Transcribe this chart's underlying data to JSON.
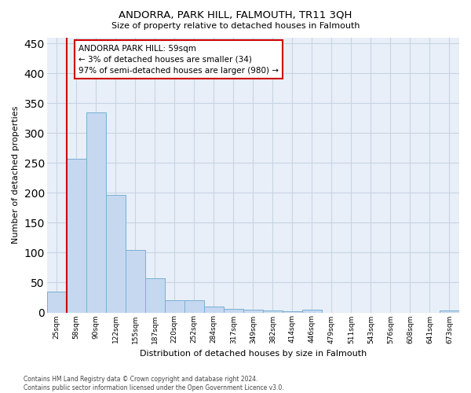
{
  "title": "ANDORRA, PARK HILL, FALMOUTH, TR11 3QH",
  "subtitle": "Size of property relative to detached houses in Falmouth",
  "xlabel": "Distribution of detached houses by size in Falmouth",
  "ylabel": "Number of detached properties",
  "categories": [
    "25sqm",
    "58sqm",
    "90sqm",
    "122sqm",
    "155sqm",
    "187sqm",
    "220sqm",
    "252sqm",
    "284sqm",
    "317sqm",
    "349sqm",
    "382sqm",
    "414sqm",
    "446sqm",
    "479sqm",
    "511sqm",
    "543sqm",
    "576sqm",
    "608sqm",
    "641sqm",
    "673sqm"
  ],
  "values": [
    35,
    257,
    335,
    196,
    105,
    57,
    20,
    20,
    10,
    6,
    5,
    3,
    2,
    5,
    0,
    0,
    0,
    0,
    0,
    0,
    3
  ],
  "bar_color": "#c5d8f0",
  "bar_edge_color": "#7bafd4",
  "vline_color": "#cc0000",
  "vline_position": 1.0,
  "annotation_text": "ANDORRA PARK HILL: 59sqm\n← 3% of detached houses are smaller (34)\n97% of semi-detached houses are larger (980) →",
  "annotation_box_facecolor": "#ffffff",
  "annotation_box_edgecolor": "#cc0000",
  "ylim": [
    0,
    460
  ],
  "yticks": [
    0,
    50,
    100,
    150,
    200,
    250,
    300,
    350,
    400,
    450
  ],
  "ax_facecolor": "#e8eff8",
  "grid_color": "#c8d4e4",
  "footer": "Contains HM Land Registry data © Crown copyright and database right 2024.\nContains public sector information licensed under the Open Government Licence v3.0."
}
